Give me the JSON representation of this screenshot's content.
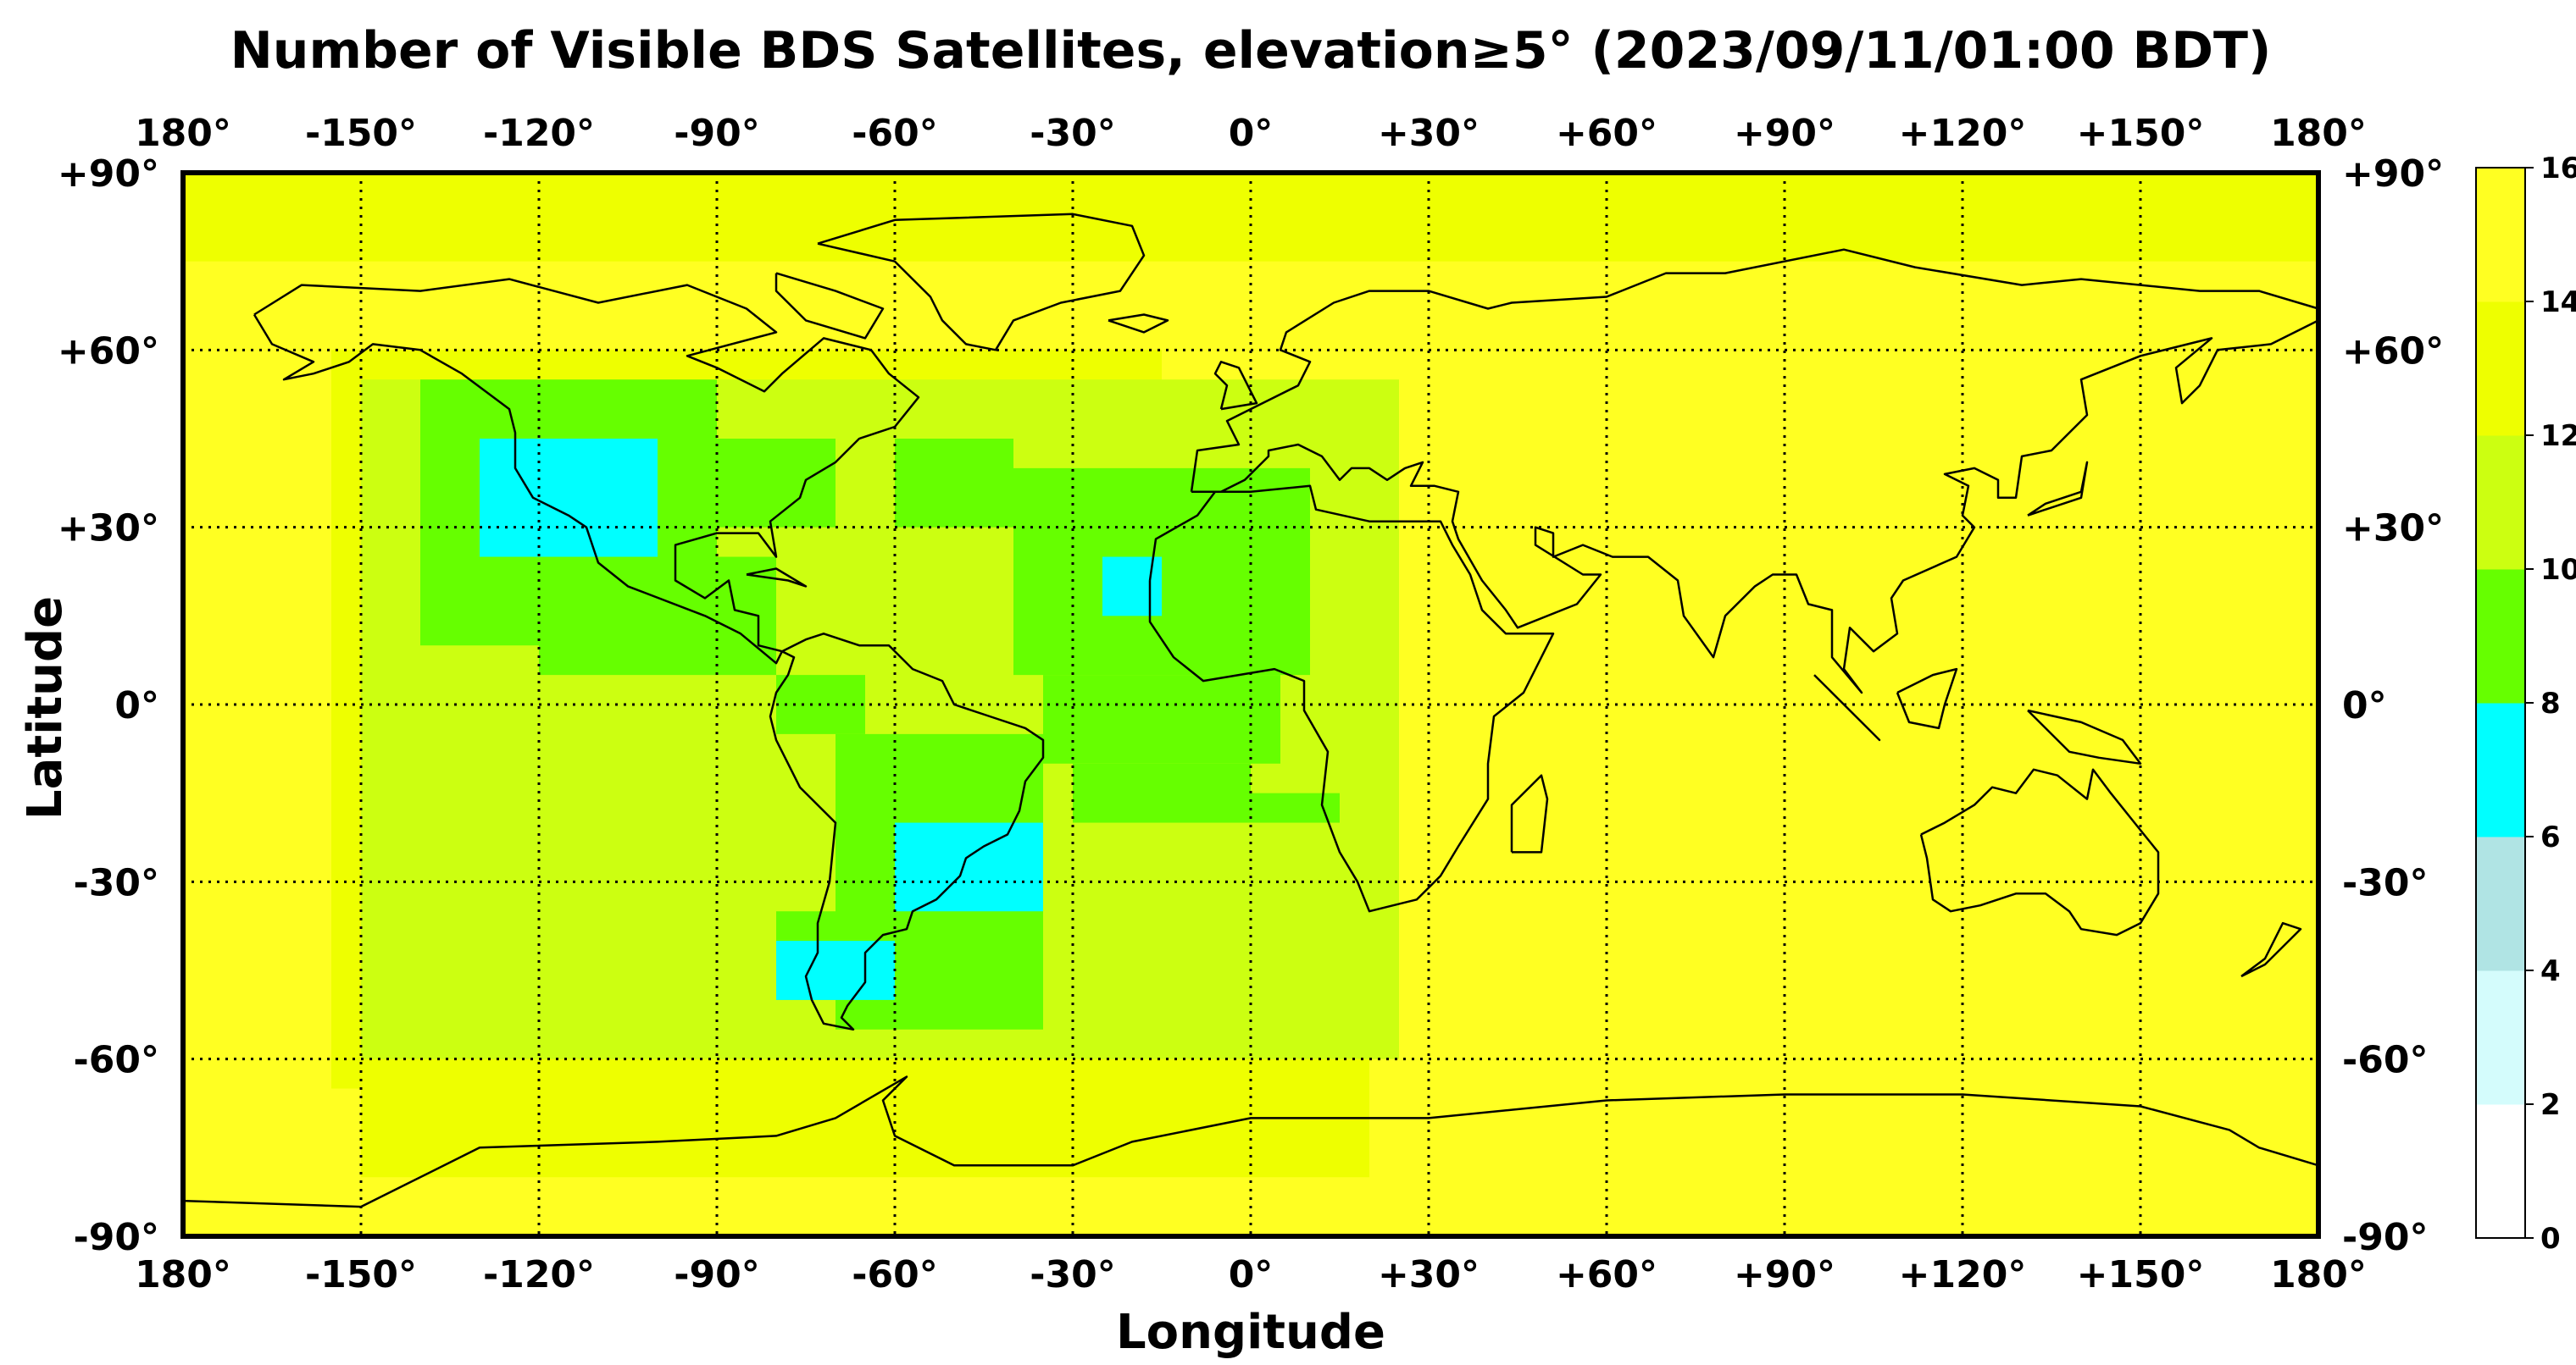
{
  "chart_data": {
    "type": "heatmap",
    "title": "Number of Visible BDS Satellites, elevation≥5° (2023/09/11/01:00 BDT)",
    "xlabel": "Longitude",
    "ylabel": "Latitude",
    "xlim": [
      -180,
      180
    ],
    "ylim": [
      -90,
      90
    ],
    "grid": true,
    "x_ticks": [
      -180,
      -150,
      -120,
      -90,
      -60,
      -30,
      0,
      30,
      60,
      90,
      120,
      150,
      180
    ],
    "x_tick_labels": [
      "180°",
      "-150°",
      "-120°",
      "-90°",
      "-60°",
      "-30°",
      "0°",
      "+30°",
      "+60°",
      "+90°",
      "+120°",
      "+150°",
      "180°"
    ],
    "y_ticks": [
      90,
      60,
      30,
      0,
      -30,
      -60,
      -90
    ],
    "y_tick_labels": [
      "+90°",
      "+60°",
      "+30°",
      "0°",
      "-30°",
      "-60°",
      "-90°"
    ],
    "colorbar": {
      "ticks": [
        0,
        2,
        4,
        6,
        8,
        10,
        12,
        14,
        16
      ],
      "tick_labels": [
        "0",
        "2",
        "4",
        "6",
        "8",
        "10",
        "12",
        "14",
        "16"
      ],
      "colors": [
        "#ffffff",
        "#d4fcfc",
        "#b0e4e4",
        "#00ffff",
        "#66ff00",
        "#ccff11",
        "#eeff00",
        "#ffff22"
      ]
    },
    "cell_size_deg": 5,
    "field_regions": [
      {
        "lon": [
          -180,
          180
        ],
        "lat": [
          -90,
          90
        ],
        "value": 15
      },
      {
        "lon": [
          -180,
          180
        ],
        "lat": [
          75,
          90
        ],
        "value": 13
      },
      {
        "lon": [
          -155,
          -15
        ],
        "lat": [
          -65,
          60
        ],
        "value": 13
      },
      {
        "lon": [
          -150,
          20
        ],
        "lat": [
          -80,
          -60
        ],
        "value": 13
      },
      {
        "lon": [
          -40,
          15
        ],
        "lat": [
          -55,
          -25
        ],
        "value": 11
      },
      {
        "lon": [
          -150,
          25
        ],
        "lat": [
          -60,
          55
        ],
        "value": 11
      },
      {
        "lon": [
          -140,
          -90
        ],
        "lat": [
          10,
          55
        ],
        "value": 9
      },
      {
        "lon": [
          -120,
          -80
        ],
        "lat": [
          5,
          25
        ],
        "value": 9
      },
      {
        "lon": [
          -80,
          -65
        ],
        "lat": [
          -5,
          5
        ],
        "value": 9
      },
      {
        "lon": [
          -70,
          -35
        ],
        "lat": [
          -55,
          -5
        ],
        "value": 9
      },
      {
        "lon": [
          -80,
          -40
        ],
        "lat": [
          -50,
          -35
        ],
        "value": 9
      },
      {
        "lon": [
          -40,
          10
        ],
        "lat": [
          5,
          40
        ],
        "value": 9
      },
      {
        "lon": [
          -35,
          5
        ],
        "lat": [
          -10,
          5
        ],
        "value": 9
      },
      {
        "lon": [
          -30,
          0
        ],
        "lat": [
          -20,
          -10
        ],
        "value": 9
      },
      {
        "lon": [
          -90,
          -70
        ],
        "lat": [
          30,
          45
        ],
        "value": 9
      },
      {
        "lon": [
          -60,
          -40
        ],
        "lat": [
          30,
          45
        ],
        "value": 9
      },
      {
        "lon": [
          0,
          15
        ],
        "lat": [
          -20,
          -15
        ],
        "value": 9
      },
      {
        "lon": [
          -130,
          -100
        ],
        "lat": [
          25,
          45
        ],
        "value": 7
      },
      {
        "lon": [
          -60,
          -35
        ],
        "lat": [
          -35,
          -20
        ],
        "value": 7
      },
      {
        "lon": [
          -80,
          -60
        ],
        "lat": [
          -50,
          -40
        ],
        "value": 7
      },
      {
        "lon": [
          -25,
          -15
        ],
        "lat": [
          15,
          25
        ],
        "value": 7
      }
    ]
  }
}
